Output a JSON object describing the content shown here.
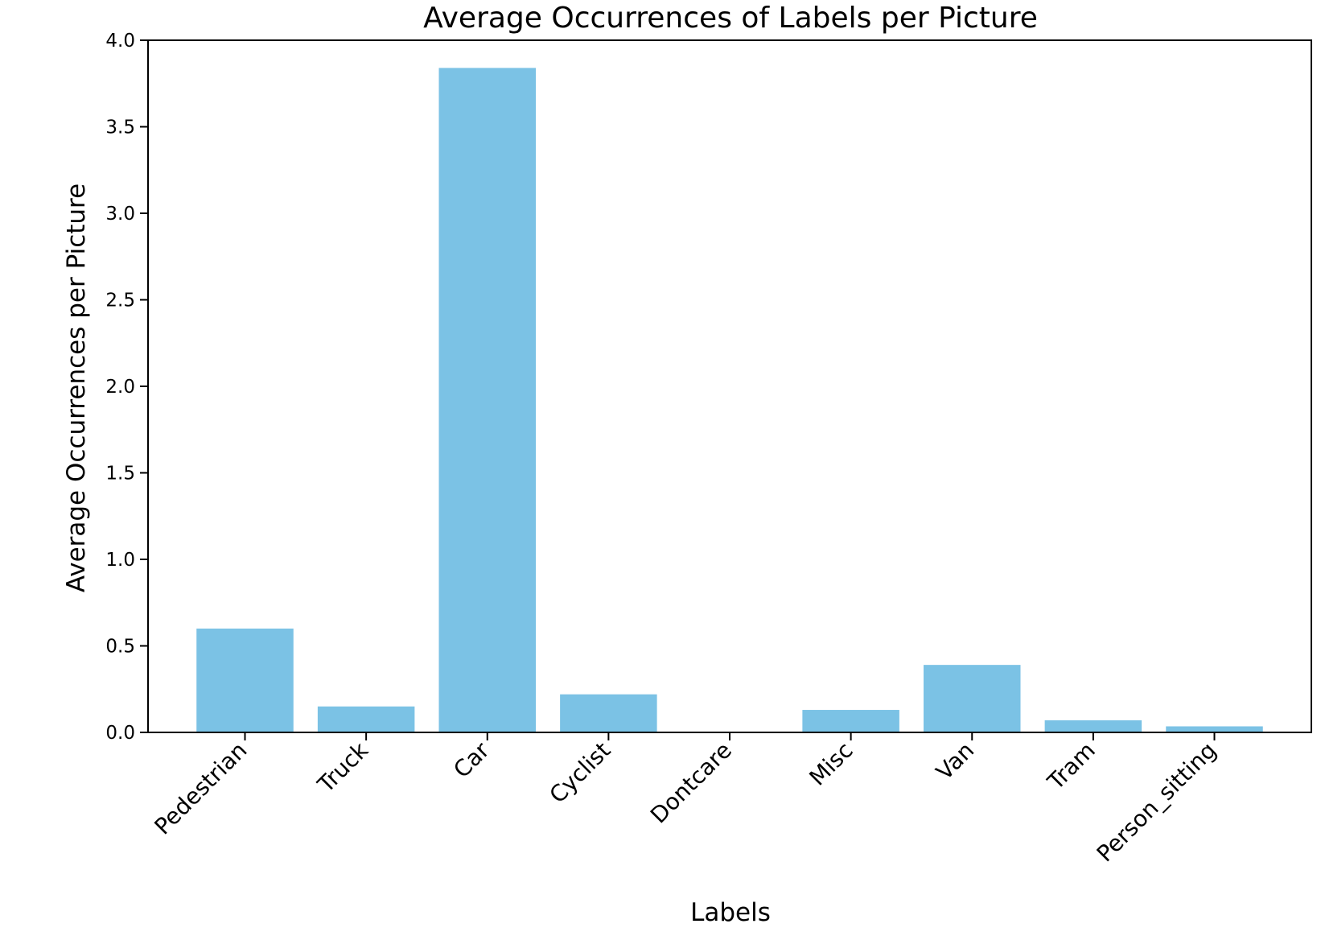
{
  "chart_data": {
    "type": "bar",
    "title": "Average Occurrences of Labels per Picture",
    "xlabel": "Labels",
    "ylabel": "Average Occurrences per Picture",
    "categories": [
      "Pedestrian",
      "Truck",
      "Car",
      "Cyclist",
      "Dontcare",
      "Misc",
      "Van",
      "Tram",
      "Person_sitting"
    ],
    "values": [
      0.6,
      0.15,
      3.84,
      0.22,
      0.0,
      0.13,
      0.39,
      0.07,
      0.035
    ],
    "ylim": [
      0,
      4.0
    ],
    "yticks": [
      "0.0",
      "0.5",
      "1.0",
      "1.5",
      "2.0",
      "2.5",
      "3.0",
      "3.5",
      "4.0"
    ],
    "grid": false,
    "bar_color": "#7bc2e5",
    "axis_color": "#000000"
  }
}
